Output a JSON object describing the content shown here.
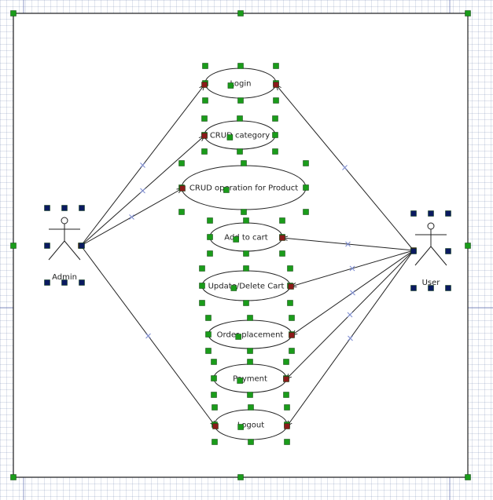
{
  "diagram": {
    "type": "use-case",
    "actors": [
      {
        "id": "admin",
        "label": "Admin"
      },
      {
        "id": "user",
        "label": "User"
      }
    ],
    "use_cases": [
      {
        "id": "login",
        "label": "Login"
      },
      {
        "id": "crud_category",
        "label": "CRUD category"
      },
      {
        "id": "crud_product",
        "label": "CRUD operation for  Product"
      },
      {
        "id": "add_cart",
        "label": "Add to cart"
      },
      {
        "id": "update_cart",
        "label": "Update/Delete Cart"
      },
      {
        "id": "order",
        "label": "Order placement"
      },
      {
        "id": "payment",
        "label": "Payment"
      },
      {
        "id": "logout",
        "label": "Logout"
      }
    ],
    "associations": [
      {
        "from": "admin",
        "to": "login"
      },
      {
        "from": "admin",
        "to": "crud_category"
      },
      {
        "from": "admin",
        "to": "crud_product"
      },
      {
        "from": "admin",
        "to": "logout"
      },
      {
        "from": "user",
        "to": "login"
      },
      {
        "from": "user",
        "to": "add_cart"
      },
      {
        "from": "user",
        "to": "update_cart"
      },
      {
        "from": "user",
        "to": "order"
      },
      {
        "from": "user",
        "to": "payment"
      },
      {
        "from": "user",
        "to": "logout"
      }
    ],
    "colors": {
      "line": "#222222",
      "handle_green": "#1a9c1a",
      "handle_red": "#8b1a1a",
      "handle_navy": "#0a1a60",
      "marker_blue": "#7a8ad0",
      "guide": "#6070b0"
    }
  }
}
